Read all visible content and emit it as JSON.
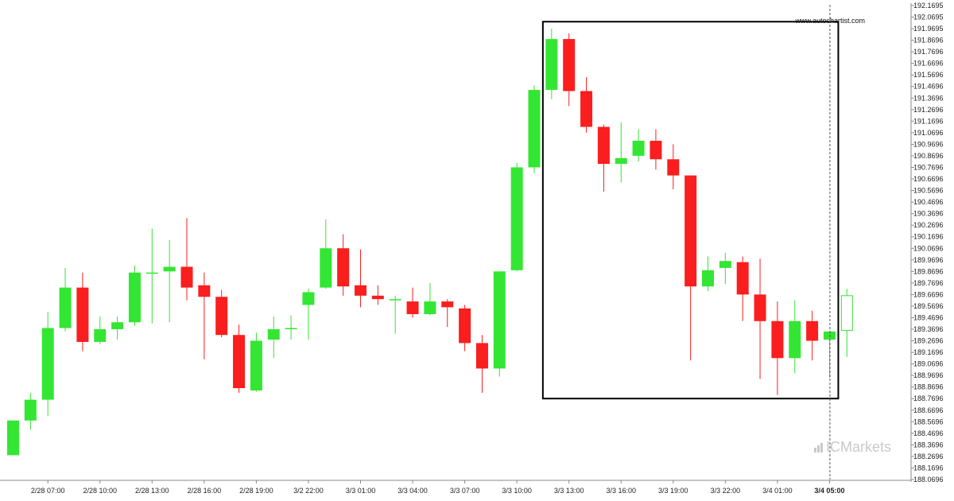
{
  "chart_data": {
    "type": "candlestick",
    "y_ticks": [
      "192.1695",
      "192.0695",
      "191.9695",
      "191.8696",
      "191.7696",
      "191.6696",
      "191.5696",
      "191.4696",
      "191.3696",
      "191.2696",
      "191.1696",
      "191.0696",
      "190.9696",
      "190.8696",
      "190.7696",
      "190.6696",
      "190.5696",
      "190.4696",
      "190.3696",
      "190.2696",
      "190.1696",
      "190.0696",
      "189.9696",
      "189.8696",
      "189.7696",
      "189.6696",
      "189.5696",
      "189.4696",
      "189.3696",
      "189.2696",
      "189.1696",
      "189.0696",
      "188.9696",
      "188.8696",
      "188.7696",
      "188.6696",
      "188.5696",
      "188.4696",
      "188.3696",
      "188.2696",
      "188.1696",
      "188.0696"
    ],
    "ylim": [
      188.0696,
      192.1695
    ],
    "x_ticks": [
      {
        "label": "2/28 07:00",
        "index": 2
      },
      {
        "label": "2/28 10:00",
        "index": 5
      },
      {
        "label": "2/28 13:00",
        "index": 8
      },
      {
        "label": "2/28 16:00",
        "index": 11
      },
      {
        "label": "2/28 19:00",
        "index": 14
      },
      {
        "label": "3/2 22:00",
        "index": 17
      },
      {
        "label": "3/3 01:00",
        "index": 20
      },
      {
        "label": "3/3 04:00",
        "index": 23
      },
      {
        "label": "3/3 07:00",
        "index": 26
      },
      {
        "label": "3/3 10:00",
        "index": 29
      },
      {
        "label": "3/3 13:00",
        "index": 32
      },
      {
        "label": "3/3 16:00",
        "index": 35
      },
      {
        "label": "3/3 19:00",
        "index": 38
      },
      {
        "label": "3/3 22:00",
        "index": 41
      },
      {
        "label": "3/4 01:00",
        "index": 44
      },
      {
        "label": "3/4 05:00",
        "index": 47,
        "bold": true
      }
    ],
    "candles": [
      {
        "o": 188.28,
        "h": 188.58,
        "l": 188.28,
        "c": 188.58
      },
      {
        "o": 188.58,
        "h": 188.82,
        "l": 188.5,
        "c": 188.76
      },
      {
        "o": 188.76,
        "h": 189.52,
        "l": 188.62,
        "c": 189.38
      },
      {
        "o": 189.38,
        "h": 189.9,
        "l": 189.35,
        "c": 189.73
      },
      {
        "o": 189.73,
        "h": 189.86,
        "l": 189.18,
        "c": 189.26
      },
      {
        "o": 189.26,
        "h": 189.48,
        "l": 189.24,
        "c": 189.37
      },
      {
        "o": 189.37,
        "h": 189.48,
        "l": 189.28,
        "c": 189.43
      },
      {
        "o": 189.43,
        "h": 189.92,
        "l": 189.4,
        "c": 189.86
      },
      {
        "o": 189.85,
        "h": 190.24,
        "l": 189.42,
        "c": 189.86
      },
      {
        "o": 189.87,
        "h": 190.14,
        "l": 189.43,
        "c": 189.91
      },
      {
        "o": 189.91,
        "h": 190.33,
        "l": 189.62,
        "c": 189.73
      },
      {
        "o": 189.75,
        "h": 189.86,
        "l": 189.11,
        "c": 189.65
      },
      {
        "o": 189.65,
        "h": 189.71,
        "l": 189.3,
        "c": 189.32
      },
      {
        "o": 189.32,
        "h": 189.41,
        "l": 188.82,
        "c": 188.86
      },
      {
        "o": 188.84,
        "h": 189.34,
        "l": 188.83,
        "c": 189.27
      },
      {
        "o": 189.28,
        "h": 189.48,
        "l": 189.12,
        "c": 189.37
      },
      {
        "o": 189.38,
        "h": 189.49,
        "l": 189.28,
        "c": 189.38
      },
      {
        "o": 189.58,
        "h": 189.72,
        "l": 189.28,
        "c": 189.69
      },
      {
        "o": 189.73,
        "h": 190.32,
        "l": 189.72,
        "c": 190.07
      },
      {
        "o": 190.07,
        "h": 190.19,
        "l": 189.66,
        "c": 189.74
      },
      {
        "o": 189.75,
        "h": 190.06,
        "l": 189.56,
        "c": 189.66
      },
      {
        "o": 189.66,
        "h": 189.75,
        "l": 189.58,
        "c": 189.63
      },
      {
        "o": 189.63,
        "h": 189.66,
        "l": 189.33,
        "c": 189.63
      },
      {
        "o": 189.61,
        "h": 189.73,
        "l": 189.47,
        "c": 189.5
      },
      {
        "o": 189.5,
        "h": 189.77,
        "l": 189.49,
        "c": 189.61
      },
      {
        "o": 189.61,
        "h": 189.63,
        "l": 189.39,
        "c": 189.56
      },
      {
        "o": 189.55,
        "h": 189.58,
        "l": 189.18,
        "c": 189.25
      },
      {
        "o": 189.25,
        "h": 189.32,
        "l": 188.82,
        "c": 189.03
      },
      {
        "o": 189.03,
        "h": 189.87,
        "l": 188.96,
        "c": 189.87
      },
      {
        "o": 189.88,
        "h": 190.81,
        "l": 189.87,
        "c": 190.77
      },
      {
        "o": 190.77,
        "h": 191.48,
        "l": 190.72,
        "c": 191.44
      },
      {
        "o": 191.44,
        "h": 191.97,
        "l": 191.36,
        "c": 191.88
      },
      {
        "o": 191.88,
        "h": 191.93,
        "l": 191.3,
        "c": 191.43
      },
      {
        "o": 191.43,
        "h": 191.55,
        "l": 191.07,
        "c": 191.12
      },
      {
        "o": 191.12,
        "h": 191.14,
        "l": 190.56,
        "c": 190.8
      },
      {
        "o": 190.8,
        "h": 191.16,
        "l": 190.64,
        "c": 190.85
      },
      {
        "o": 190.87,
        "h": 191.1,
        "l": 190.82,
        "c": 191.0
      },
      {
        "o": 191.0,
        "h": 191.1,
        "l": 190.75,
        "c": 190.84
      },
      {
        "o": 190.84,
        "h": 190.97,
        "l": 190.58,
        "c": 190.7
      },
      {
        "o": 190.7,
        "h": 190.7,
        "l": 189.1,
        "c": 189.74
      },
      {
        "o": 189.74,
        "h": 190.0,
        "l": 189.7,
        "c": 189.88
      },
      {
        "o": 189.9,
        "h": 190.03,
        "l": 189.76,
        "c": 189.96
      },
      {
        "o": 189.95,
        "h": 190.0,
        "l": 189.44,
        "c": 189.67
      },
      {
        "o": 189.67,
        "h": 189.98,
        "l": 188.94,
        "c": 189.44
      },
      {
        "o": 189.44,
        "h": 189.61,
        "l": 188.8,
        "c": 189.12
      },
      {
        "o": 189.12,
        "h": 189.62,
        "l": 188.99,
        "c": 189.44
      },
      {
        "o": 189.44,
        "h": 189.53,
        "l": 189.1,
        "c": 189.27
      },
      {
        "o": 189.28,
        "h": 189.35,
        "l": 188.95,
        "c": 189.35
      },
      {
        "o": 189.36,
        "h": 189.72,
        "l": 189.13,
        "c": 189.66,
        "hollow": true
      }
    ],
    "highlight_box": {
      "start_index": 31,
      "end_index": 47,
      "top": 192.03,
      "bottom": 188.77
    },
    "current_marker_index": 47,
    "colors": {
      "up": "#33e633",
      "down": "#fa1e1e",
      "box": "#000000",
      "marker": "#555555"
    },
    "grid": false
  },
  "watermark": {
    "site": "www.autochartist.com"
  },
  "brand": {
    "prefix": "IC",
    "name": "Markets"
  }
}
